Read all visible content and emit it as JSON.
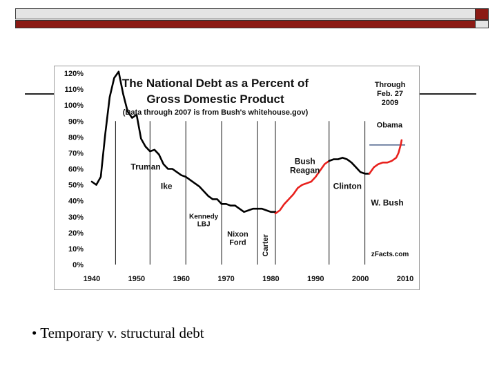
{
  "slide": {
    "bullet_text": "• Temporary v. structural debt",
    "colors": {
      "header_red": "#8b1a14",
      "header_gray": "#e4e4e4"
    }
  },
  "chart_data": {
    "type": "line",
    "title": "The National Debt as a Percent of",
    "title_line2": "Gross Domestic Product",
    "subtitle": "(Data through 2007 is from Bush's whitehouse.gov)",
    "note": [
      "Through",
      "Feb. 27",
      "2009"
    ],
    "source": "zFacts.com",
    "xlabel": "",
    "ylabel": "",
    "xlim": [
      1940,
      2010
    ],
    "ylim": [
      0,
      120
    ],
    "x_ticks": [
      1940,
      1950,
      1960,
      1970,
      1980,
      1990,
      2000,
      2010
    ],
    "y_ticks": [
      {
        "value": 0,
        "label": "0%"
      },
      {
        "value": 10,
        "label": "10%"
      },
      {
        "value": 20,
        "label": "20%"
      },
      {
        "value": 30,
        "label": "30%"
      },
      {
        "value": 40,
        "label": "40%"
      },
      {
        "value": 50,
        "label": "50%"
      },
      {
        "value": 60,
        "label": "60%"
      },
      {
        "value": 70,
        "label": "70%"
      },
      {
        "value": 80,
        "label": "80%"
      },
      {
        "value": 90,
        "label": "90%"
      },
      {
        "value": 100,
        "label": "100%"
      },
      {
        "value": 110,
        "label": "110%"
      },
      {
        "value": 120,
        "label": "120%"
      }
    ],
    "divider_years": [
      1945.3,
      1953,
      1961,
      1969,
      1977,
      1981,
      1993,
      2001
    ],
    "obama_line": {
      "x_start": 2002,
      "x_end": 2010,
      "value": 75
    },
    "series": [
      {
        "name": "black",
        "color": "#000000",
        "x": [
          1940,
          1941,
          1942,
          1943,
          1944,
          1945,
          1946,
          1947,
          1948,
          1949,
          1950,
          1951,
          1952,
          1953,
          1954,
          1955,
          1956,
          1957,
          1958,
          1959,
          1960,
          1961,
          1962,
          1963,
          1964,
          1965,
          1966,
          1967,
          1968,
          1969,
          1970,
          1971,
          1972,
          1973,
          1974,
          1975,
          1976,
          1977,
          1978,
          1979,
          1980,
          1981
        ],
        "values": [
          52,
          50,
          55,
          82,
          105,
          117,
          121,
          107,
          96,
          92,
          94,
          79,
          74,
          71,
          72,
          69,
          63,
          60,
          60,
          58,
          56,
          55,
          53,
          51,
          49,
          46,
          43,
          41,
          41,
          38,
          38,
          37,
          37,
          35,
          33,
          34,
          35,
          35,
          35,
          34,
          33,
          33
        ]
      },
      {
        "name": "red",
        "color": "#e8201c",
        "x": [
          1981,
          1982,
          1983,
          1984,
          1985,
          1986,
          1987,
          1988,
          1989,
          1990,
          1991,
          1992,
          1993
        ],
        "values": [
          32,
          34,
          38,
          41,
          44,
          48,
          50,
          51,
          52,
          55,
          59,
          63,
          65
        ]
      },
      {
        "name": "black",
        "color": "#000000",
        "x": [
          1993,
          1994,
          1995,
          1996,
          1997,
          1998,
          1999,
          2000,
          2001,
          2002
        ],
        "values": [
          65,
          66,
          66,
          67,
          66,
          64,
          61,
          58,
          57,
          57
        ]
      },
      {
        "name": "red",
        "color": "#e8201c",
        "x": [
          2002,
          2003,
          2004,
          2005,
          2006,
          2007,
          2008,
          2008.5,
          2009,
          2009.2
        ],
        "values": [
          57,
          61,
          63,
          64,
          64,
          65,
          67,
          70,
          75,
          78
        ]
      }
    ],
    "annotations": [
      {
        "id": "truman",
        "lines": [
          "Truman"
        ],
        "x": 1948.7,
        "y": 59.5,
        "size": 12,
        "anchor": "start"
      },
      {
        "id": "ike",
        "lines": [
          "Ike"
        ],
        "x": 1955.4,
        "y": 47.5,
        "size": 12,
        "anchor": "start"
      },
      {
        "id": "kennedy-lbj",
        "lines": [
          "Kennedy",
          "LBJ"
        ],
        "x": 1965,
        "y": 28.8,
        "size": 10,
        "anchor": "middle"
      },
      {
        "id": "nixon-ford",
        "lines": [
          "Nixon",
          "Ford"
        ],
        "x": 1972.6,
        "y": 17.5,
        "size": 11,
        "anchor": "middle"
      },
      {
        "id": "bush-reagan",
        "lines": [
          "Bush",
          "Reagan"
        ],
        "x": 1987.6,
        "y": 63,
        "size": 12,
        "anchor": "middle"
      },
      {
        "id": "clinton",
        "lines": [
          "Clinton"
        ],
        "x": 1997.1,
        "y": 47.5,
        "size": 12,
        "anchor": "middle"
      },
      {
        "id": "w-bush",
        "lines": [
          "W. Bush"
        ],
        "x": 2006,
        "y": 37,
        "size": 12,
        "anchor": "middle"
      },
      {
        "id": "obama",
        "lines": [
          "Obama"
        ],
        "x": 2006.5,
        "y": 86,
        "size": 11,
        "anchor": "middle"
      },
      {
        "id": "carter",
        "lines": [
          "Carter"
        ],
        "x": 1979.3,
        "y": 5,
        "size": 11,
        "anchor": "start",
        "rotate": -90
      }
    ]
  }
}
